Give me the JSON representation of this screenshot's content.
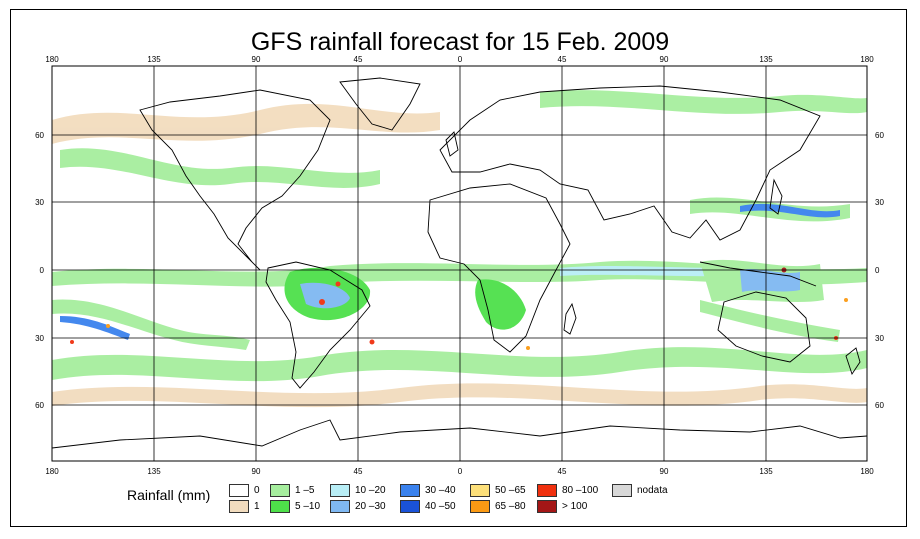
{
  "title": "GFS rainfall forecast for 15 Feb. 2009",
  "map": {
    "longitude_ticks": [
      "180",
      "135",
      "90",
      "45",
      "0",
      "45",
      "90",
      "135",
      "180"
    ],
    "latitude_ticks": [
      "60",
      "30",
      "0",
      "30",
      "60"
    ],
    "ocean_color": "#ffffff",
    "coast_color": "#000000",
    "grid_color": "#000000"
  },
  "legend": {
    "title": "Rainfall (mm)",
    "items": [
      {
        "label": "0",
        "color": "#ffffff"
      },
      {
        "label": "1",
        "color": "#f2dcbe"
      },
      {
        "label": "1 –5",
        "color": "#a6ee9e"
      },
      {
        "label": "5 –10",
        "color": "#4ee04a"
      },
      {
        "label": "10 –20",
        "color": "#b8eef6"
      },
      {
        "label": "20 –30",
        "color": "#7fb8f2"
      },
      {
        "label": "30 –40",
        "color": "#3a82ee"
      },
      {
        "label": "40 –50",
        "color": "#1a52d8"
      },
      {
        "label": "50 –65",
        "color": "#fde07a"
      },
      {
        "label": "65 –80",
        "color": "#fb9a14"
      },
      {
        "label": "80 –100",
        "color": "#f0300e"
      },
      {
        "label": "> 100",
        "color": "#a41616"
      },
      {
        "label": "nodata",
        "color": "#d8d8d8"
      }
    ]
  }
}
